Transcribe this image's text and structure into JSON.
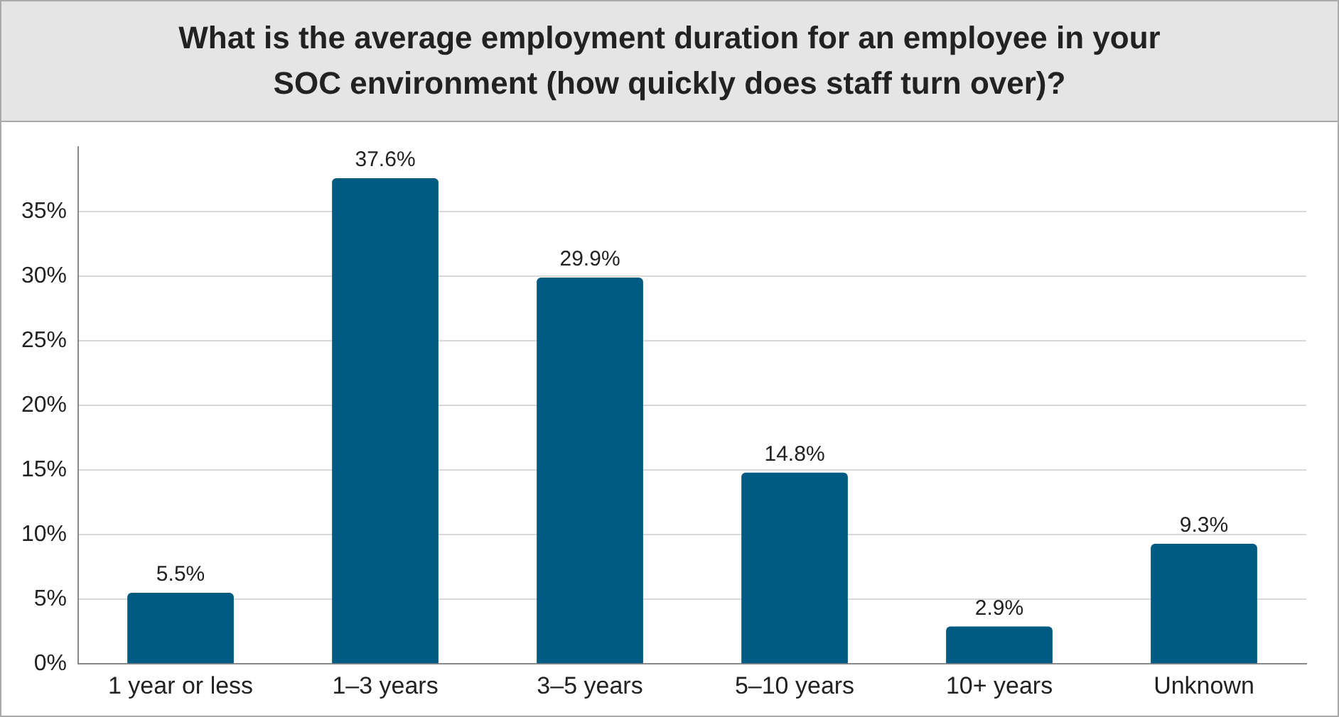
{
  "chart_data": {
    "type": "bar",
    "title": "What is the average employment duration for an employee in your SOC environment (how quickly does staff turn over)?",
    "categories": [
      "1 year or less",
      "1–3 years",
      "3–5 years",
      "5–10 years",
      "10+ years",
      "Unknown"
    ],
    "values": [
      5.5,
      37.6,
      29.9,
      14.8,
      2.9,
      9.3
    ],
    "value_labels": [
      "5.5%",
      "37.6%",
      "29.9%",
      "14.8%",
      "2.9%",
      "9.3%"
    ],
    "color": "#005b82",
    "ylim": [
      0,
      40
    ],
    "yticks": [
      {
        "value": 0,
        "label": "0%"
      },
      {
        "value": 5,
        "label": "5%"
      },
      {
        "value": 10,
        "label": "10%"
      },
      {
        "value": 15,
        "label": "15%"
      },
      {
        "value": 20,
        "label": "20%"
      },
      {
        "value": 25,
        "label": "25%"
      },
      {
        "value": 30,
        "label": "30%"
      },
      {
        "value": 35,
        "label": "35%"
      }
    ],
    "grid": "y"
  }
}
